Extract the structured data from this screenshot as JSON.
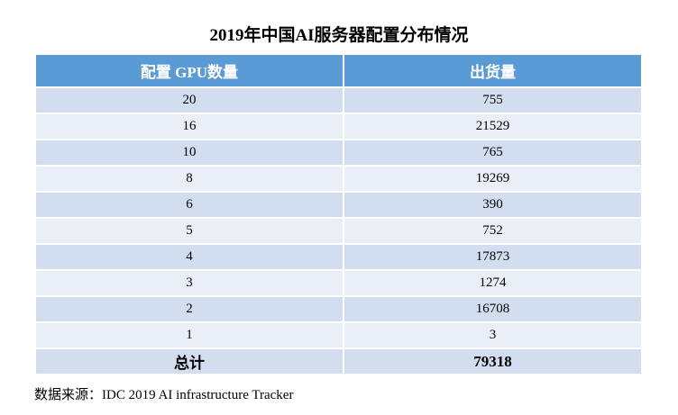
{
  "chart_data": {
    "type": "table",
    "title": "2019年中国AI服务器配置分布情况",
    "columns": [
      "配置 GPU数量",
      "出货量"
    ],
    "rows": [
      [
        "20",
        "755"
      ],
      [
        "16",
        "21529"
      ],
      [
        "10",
        "765"
      ],
      [
        "8",
        "19269"
      ],
      [
        "6",
        "390"
      ],
      [
        "5",
        "752"
      ],
      [
        "4",
        "17873"
      ],
      [
        "3",
        "1274"
      ],
      [
        "2",
        "16708"
      ],
      [
        "1",
        "3"
      ]
    ],
    "total": [
      "总计",
      "79318"
    ],
    "source": "数据来源：IDC 2019 AI infrastructure Tracker"
  },
  "colors": {
    "header": "#5B9BD5",
    "row_odd": "#D2DEEF",
    "row_even": "#EAEFF7"
  }
}
